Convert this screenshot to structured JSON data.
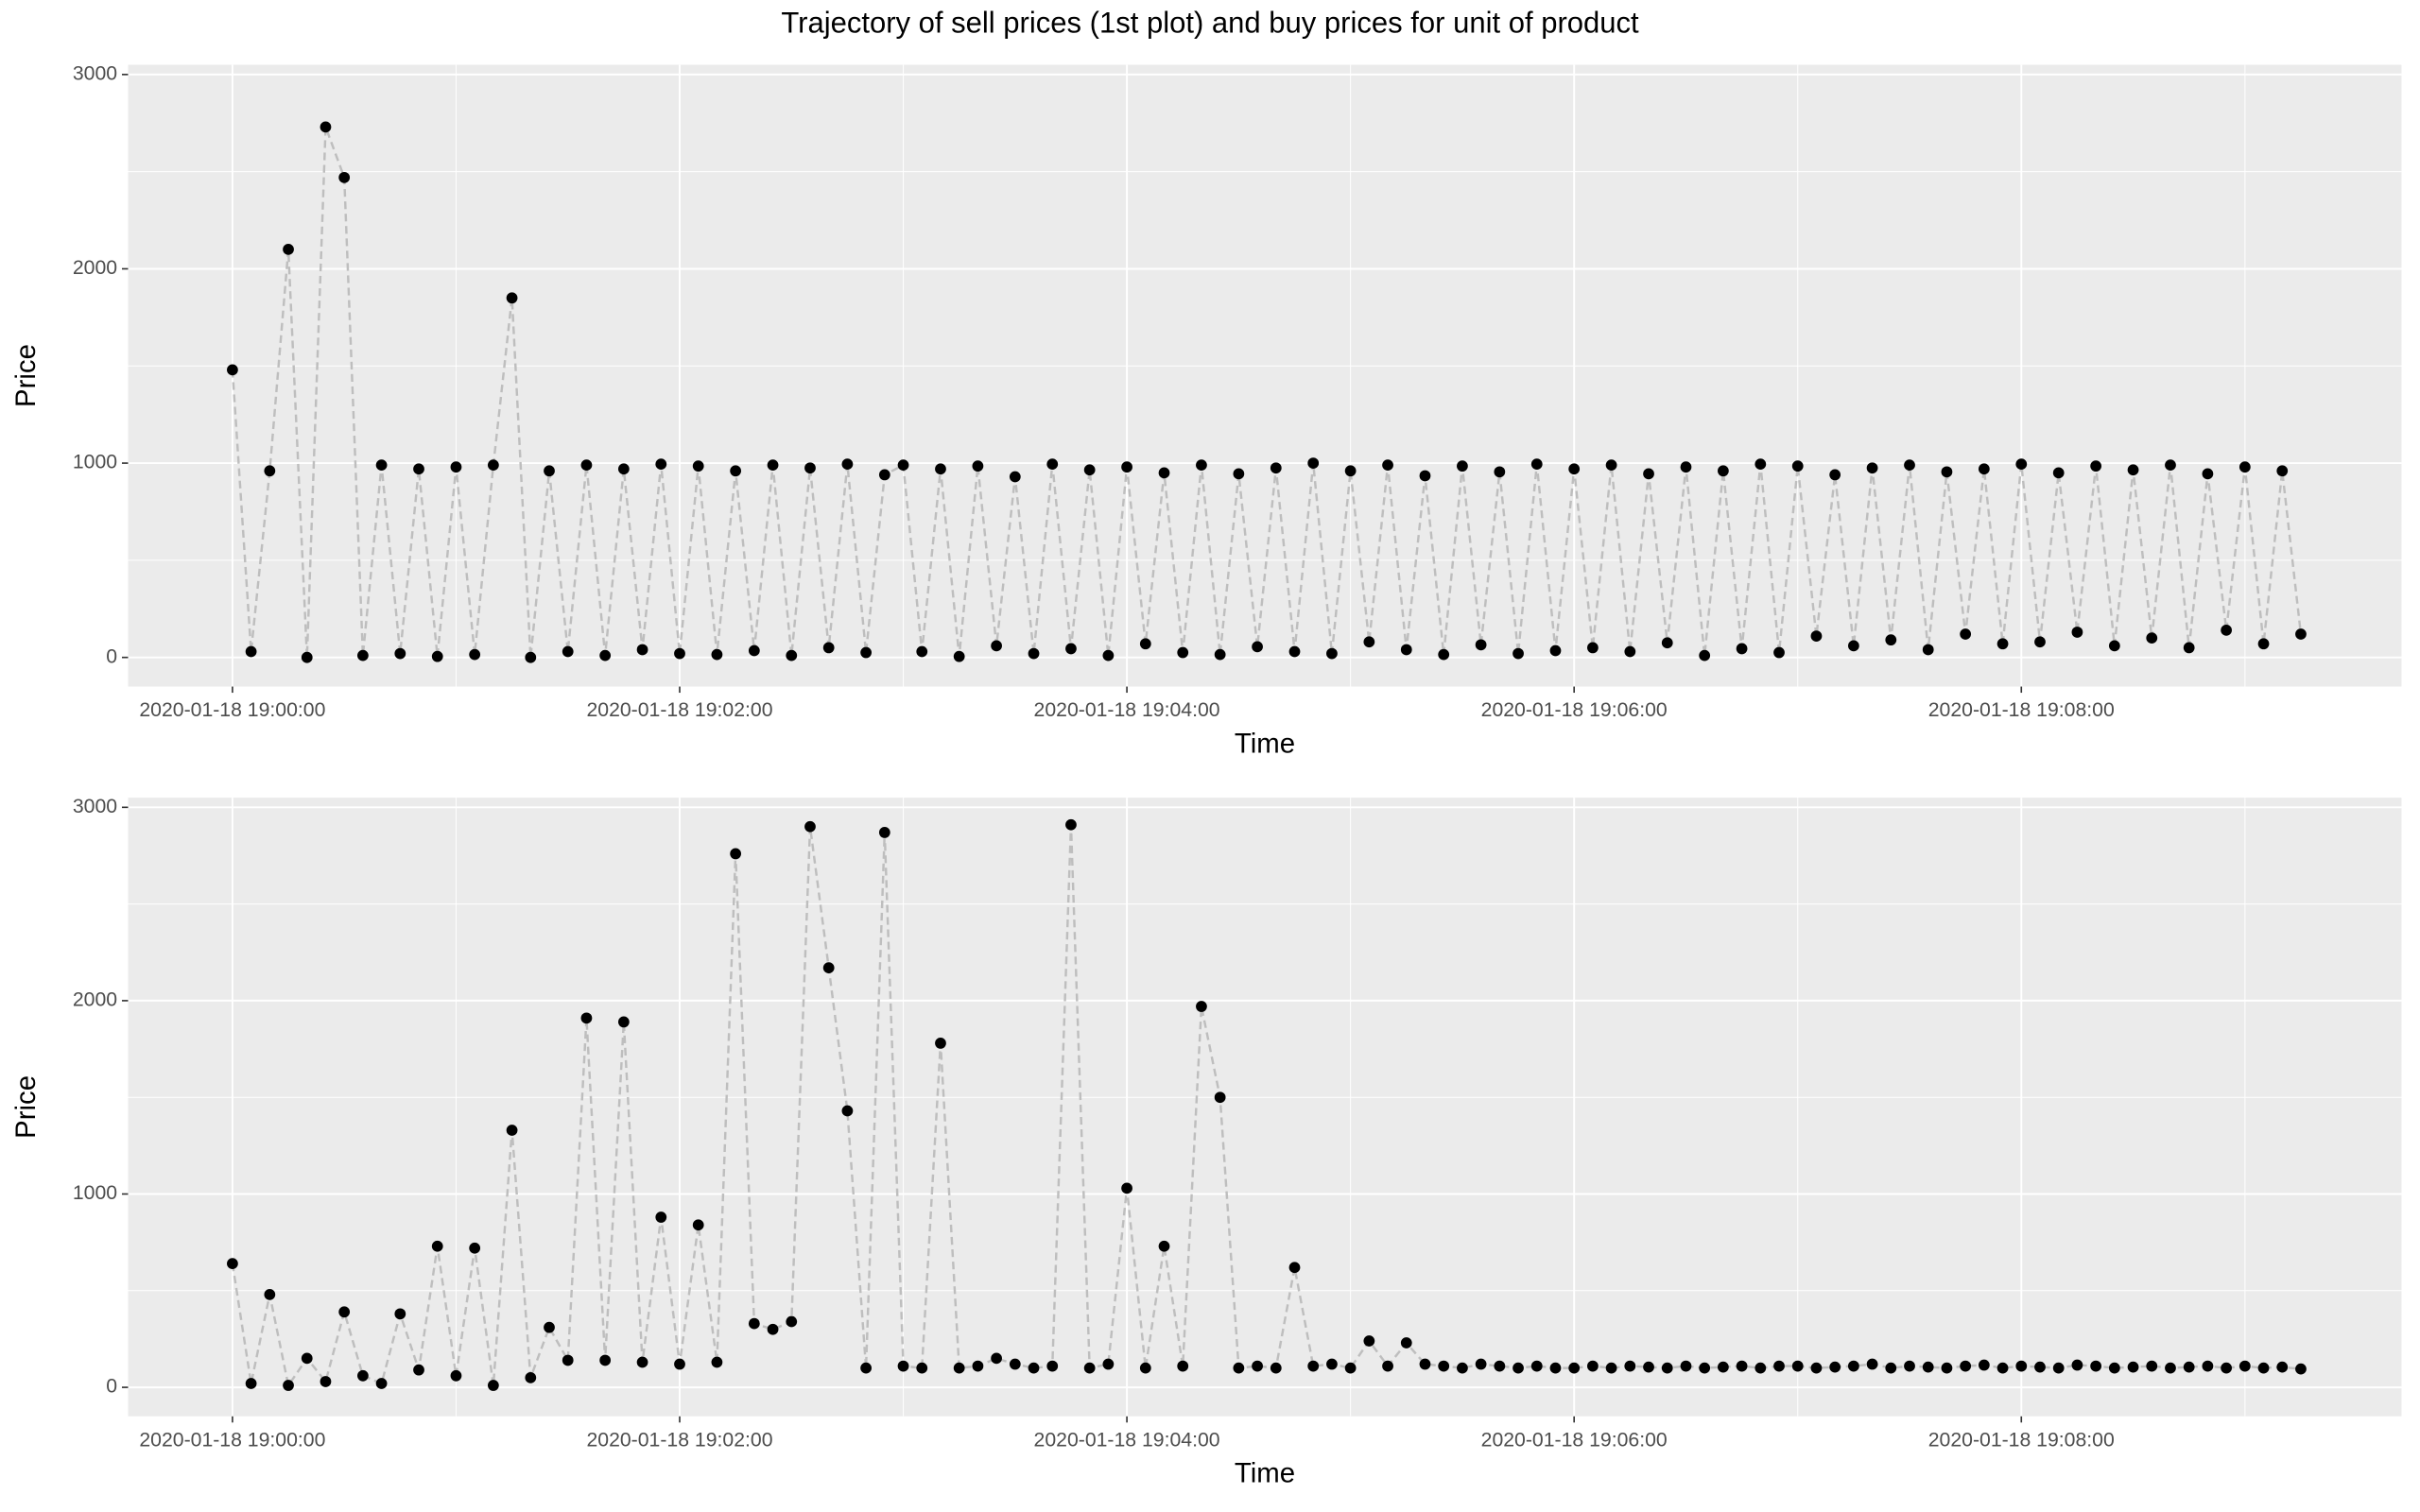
{
  "title": "Trajectory of sell prices (1st plot) and buy prices for unit of product",
  "chart_data": [
    {
      "type": "line",
      "xlabel": "Time",
      "ylabel": "Price",
      "color": "#000000",
      "line_color": "#bebebe",
      "grid": true,
      "xlim": [
        "2020-01-18 18:59:32",
        "2020-01-18 19:09:42"
      ],
      "xticks": [
        "2020-01-18 19:00:00",
        "2020-01-18 19:02:00",
        "2020-01-18 19:04:00",
        "2020-01-18 19:06:00",
        "2020-01-18 19:08:00"
      ],
      "ylim": [
        -150,
        3050
      ],
      "yticks": [
        0,
        1000,
        2000,
        3000
      ],
      "x": [
        "2020-01-18 19:00:00",
        "2020-01-18 19:00:05",
        "2020-01-18 19:00:10",
        "2020-01-18 19:00:15",
        "2020-01-18 19:00:20",
        "2020-01-18 19:00:25",
        "2020-01-18 19:00:30",
        "2020-01-18 19:00:35",
        "2020-01-18 19:00:40",
        "2020-01-18 19:00:45",
        "2020-01-18 19:00:50",
        "2020-01-18 19:00:55",
        "2020-01-18 19:01:00",
        "2020-01-18 19:01:05",
        "2020-01-18 19:01:10",
        "2020-01-18 19:01:15",
        "2020-01-18 19:01:20",
        "2020-01-18 19:01:25",
        "2020-01-18 19:01:30",
        "2020-01-18 19:01:35",
        "2020-01-18 19:01:40",
        "2020-01-18 19:01:45",
        "2020-01-18 19:01:50",
        "2020-01-18 19:01:55",
        "2020-01-18 19:02:00",
        "2020-01-18 19:02:05",
        "2020-01-18 19:02:10",
        "2020-01-18 19:02:15",
        "2020-01-18 19:02:20",
        "2020-01-18 19:02:25",
        "2020-01-18 19:02:30",
        "2020-01-18 19:02:35",
        "2020-01-18 19:02:40",
        "2020-01-18 19:02:45",
        "2020-01-18 19:02:50",
        "2020-01-18 19:02:55",
        "2020-01-18 19:03:00",
        "2020-01-18 19:03:05",
        "2020-01-18 19:03:10",
        "2020-01-18 19:03:15",
        "2020-01-18 19:03:20",
        "2020-01-18 19:03:25",
        "2020-01-18 19:03:30",
        "2020-01-18 19:03:35",
        "2020-01-18 19:03:40",
        "2020-01-18 19:03:45",
        "2020-01-18 19:03:50",
        "2020-01-18 19:03:55",
        "2020-01-18 19:04:00",
        "2020-01-18 19:04:05",
        "2020-01-18 19:04:10",
        "2020-01-18 19:04:15",
        "2020-01-18 19:04:20",
        "2020-01-18 19:04:25",
        "2020-01-18 19:04:30",
        "2020-01-18 19:04:35",
        "2020-01-18 19:04:40",
        "2020-01-18 19:04:45",
        "2020-01-18 19:04:50",
        "2020-01-18 19:04:55",
        "2020-01-18 19:05:00",
        "2020-01-18 19:05:05",
        "2020-01-18 19:05:10",
        "2020-01-18 19:05:15",
        "2020-01-18 19:05:20",
        "2020-01-18 19:05:25",
        "2020-01-18 19:05:30",
        "2020-01-18 19:05:35",
        "2020-01-18 19:05:40",
        "2020-01-18 19:05:45",
        "2020-01-18 19:05:50",
        "2020-01-18 19:05:55",
        "2020-01-18 19:06:00",
        "2020-01-18 19:06:05",
        "2020-01-18 19:06:10",
        "2020-01-18 19:06:15",
        "2020-01-18 19:06:20",
        "2020-01-18 19:06:25",
        "2020-01-18 19:06:30",
        "2020-01-18 19:06:35",
        "2020-01-18 19:06:40",
        "2020-01-18 19:06:45",
        "2020-01-18 19:06:50",
        "2020-01-18 19:06:55",
        "2020-01-18 19:07:00",
        "2020-01-18 19:07:05",
        "2020-01-18 19:07:10",
        "2020-01-18 19:07:15",
        "2020-01-18 19:07:20",
        "2020-01-18 19:07:25",
        "2020-01-18 19:07:30",
        "2020-01-18 19:07:35",
        "2020-01-18 19:07:40",
        "2020-01-18 19:07:45",
        "2020-01-18 19:07:50",
        "2020-01-18 19:07:55",
        "2020-01-18 19:08:00",
        "2020-01-18 19:08:05",
        "2020-01-18 19:08:10",
        "2020-01-18 19:08:15",
        "2020-01-18 19:08:20",
        "2020-01-18 19:08:25",
        "2020-01-18 19:08:30",
        "2020-01-18 19:08:35",
        "2020-01-18 19:08:40",
        "2020-01-18 19:08:45",
        "2020-01-18 19:08:50",
        "2020-01-18 19:08:55",
        "2020-01-18 19:09:00",
        "2020-01-18 19:09:05",
        "2020-01-18 19:09:10",
        "2020-01-18 19:09:15"
      ],
      "values": [
        1480,
        30,
        960,
        2100,
        0,
        2730,
        2470,
        10,
        990,
        20,
        970,
        5,
        980,
        15,
        990,
        1850,
        0,
        960,
        30,
        990,
        10,
        970,
        40,
        995,
        20,
        985,
        15,
        960,
        35,
        990,
        10,
        975,
        50,
        995,
        25,
        940,
        990,
        30,
        970,
        5,
        985,
        60,
        930,
        20,
        995,
        45,
        965,
        10,
        980,
        70,
        950,
        25,
        990,
        15,
        945,
        55,
        975,
        30,
        1000,
        20,
        960,
        80,
        990,
        40,
        935,
        15,
        985,
        65,
        955,
        20,
        995,
        35,
        970,
        50,
        990,
        30,
        945,
        75,
        980,
        10,
        960,
        45,
        995,
        25,
        985,
        110,
        940,
        60,
        975,
        90,
        990,
        40,
        955,
        120,
        970,
        70,
        995,
        80,
        950,
        130,
        985,
        60,
        965,
        100,
        990,
        50,
        945,
        140,
        980,
        70,
        960,
        120
      ]
    },
    {
      "type": "line",
      "xlabel": "Time",
      "ylabel": "Price",
      "color": "#000000",
      "line_color": "#bebebe",
      "grid": true,
      "xlim": [
        "2020-01-18 18:59:32",
        "2020-01-18 19:09:42"
      ],
      "xticks": [
        "2020-01-18 19:00:00",
        "2020-01-18 19:02:00",
        "2020-01-18 19:04:00",
        "2020-01-18 19:06:00",
        "2020-01-18 19:08:00"
      ],
      "ylim": [
        -150,
        3050
      ],
      "yticks": [
        0,
        1000,
        2000,
        3000
      ],
      "x": [
        "2020-01-18 19:00:00",
        "2020-01-18 19:00:05",
        "2020-01-18 19:00:10",
        "2020-01-18 19:00:15",
        "2020-01-18 19:00:20",
        "2020-01-18 19:00:25",
        "2020-01-18 19:00:30",
        "2020-01-18 19:00:35",
        "2020-01-18 19:00:40",
        "2020-01-18 19:00:45",
        "2020-01-18 19:00:50",
        "2020-01-18 19:00:55",
        "2020-01-18 19:01:00",
        "2020-01-18 19:01:05",
        "2020-01-18 19:01:10",
        "2020-01-18 19:01:15",
        "2020-01-18 19:01:20",
        "2020-01-18 19:01:25",
        "2020-01-18 19:01:30",
        "2020-01-18 19:01:35",
        "2020-01-18 19:01:40",
        "2020-01-18 19:01:45",
        "2020-01-18 19:01:50",
        "2020-01-18 19:01:55",
        "2020-01-18 19:02:00",
        "2020-01-18 19:02:05",
        "2020-01-18 19:02:10",
        "2020-01-18 19:02:15",
        "2020-01-18 19:02:20",
        "2020-01-18 19:02:25",
        "2020-01-18 19:02:30",
        "2020-01-18 19:02:35",
        "2020-01-18 19:02:40",
        "2020-01-18 19:02:45",
        "2020-01-18 19:02:50",
        "2020-01-18 19:02:55",
        "2020-01-18 19:03:00",
        "2020-01-18 19:03:05",
        "2020-01-18 19:03:10",
        "2020-01-18 19:03:15",
        "2020-01-18 19:03:20",
        "2020-01-18 19:03:25",
        "2020-01-18 19:03:30",
        "2020-01-18 19:03:35",
        "2020-01-18 19:03:40",
        "2020-01-18 19:03:45",
        "2020-01-18 19:03:50",
        "2020-01-18 19:03:55",
        "2020-01-18 19:04:00",
        "2020-01-18 19:04:05",
        "2020-01-18 19:04:10",
        "2020-01-18 19:04:15",
        "2020-01-18 19:04:20",
        "2020-01-18 19:04:25",
        "2020-01-18 19:04:30",
        "2020-01-18 19:04:35",
        "2020-01-18 19:04:40",
        "2020-01-18 19:04:45",
        "2020-01-18 19:04:50",
        "2020-01-18 19:04:55",
        "2020-01-18 19:05:00",
        "2020-01-18 19:05:05",
        "2020-01-18 19:05:10",
        "2020-01-18 19:05:15",
        "2020-01-18 19:05:20",
        "2020-01-18 19:05:25",
        "2020-01-18 19:05:30",
        "2020-01-18 19:05:35",
        "2020-01-18 19:05:40",
        "2020-01-18 19:05:45",
        "2020-01-18 19:05:50",
        "2020-01-18 19:05:55",
        "2020-01-18 19:06:00",
        "2020-01-18 19:06:05",
        "2020-01-18 19:06:10",
        "2020-01-18 19:06:15",
        "2020-01-18 19:06:20",
        "2020-01-18 19:06:25",
        "2020-01-18 19:06:30",
        "2020-01-18 19:06:35",
        "2020-01-18 19:06:40",
        "2020-01-18 19:06:45",
        "2020-01-18 19:06:50",
        "2020-01-18 19:06:55",
        "2020-01-18 19:07:00",
        "2020-01-18 19:07:05",
        "2020-01-18 19:07:10",
        "2020-01-18 19:07:15",
        "2020-01-18 19:07:20",
        "2020-01-18 19:07:25",
        "2020-01-18 19:07:30",
        "2020-01-18 19:07:35",
        "2020-01-18 19:07:40",
        "2020-01-18 19:07:45",
        "2020-01-18 19:07:50",
        "2020-01-18 19:07:55",
        "2020-01-18 19:08:00",
        "2020-01-18 19:08:05",
        "2020-01-18 19:08:10",
        "2020-01-18 19:08:15",
        "2020-01-18 19:08:20",
        "2020-01-18 19:08:25",
        "2020-01-18 19:08:30",
        "2020-01-18 19:08:35",
        "2020-01-18 19:08:40",
        "2020-01-18 19:08:45",
        "2020-01-18 19:08:50",
        "2020-01-18 19:08:55",
        "2020-01-18 19:09:00",
        "2020-01-18 19:09:05",
        "2020-01-18 19:09:10",
        "2020-01-18 19:09:15"
      ],
      "values": [
        640,
        20,
        480,
        10,
        150,
        30,
        390,
        60,
        20,
        380,
        90,
        730,
        60,
        720,
        10,
        1330,
        50,
        310,
        140,
        1910,
        140,
        1890,
        130,
        880,
        120,
        840,
        130,
        2760,
        330,
        300,
        340,
        2900,
        2170,
        1430,
        100,
        2870,
        110,
        100,
        1780,
        100,
        110,
        150,
        120,
        100,
        110,
        2910,
        100,
        120,
        1030,
        100,
        730,
        110,
        1970,
        1500,
        100,
        110,
        100,
        620,
        110,
        120,
        100,
        240,
        110,
        230,
        120,
        110,
        100,
        120,
        110,
        100,
        110,
        100,
        100,
        110,
        100,
        110,
        105,
        100,
        110,
        100,
        105,
        110,
        100,
        110,
        110,
        100,
        105,
        110,
        120,
        100,
        110,
        105,
        100,
        110,
        115,
        100,
        110,
        105,
        100,
        115,
        110,
        100,
        105,
        110,
        100,
        105,
        110,
        100,
        110,
        100,
        105,
        95
      ]
    }
  ]
}
